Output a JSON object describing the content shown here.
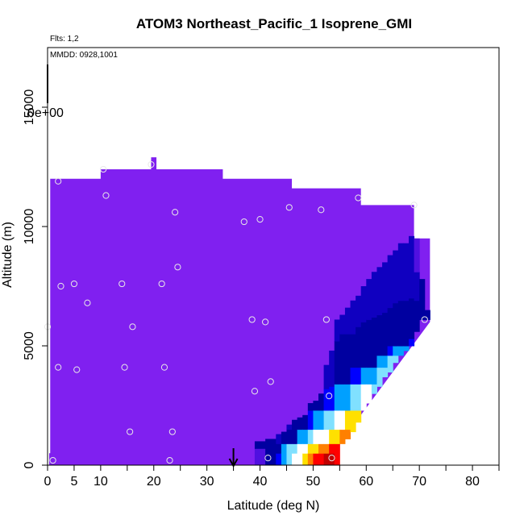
{
  "chart_data": {
    "type": "heatmap",
    "title": "ATOM3 Northeast_Pacific_1 Isoprene_GMI",
    "subtitle_flights": "Flts: 1,2",
    "subtitle_dates": "MMDD: 0928,1001",
    "xlabel": "Latitude (deg N)",
    "ylabel": "Altitude (m)",
    "xlim": [
      0,
      85
    ],
    "ylim": [
      0,
      17500
    ],
    "x_ticks": [
      0,
      5,
      10,
      20,
      30,
      40,
      50,
      60,
      70,
      80
    ],
    "x_minor_ticks": [
      15,
      25,
      35,
      45,
      55,
      65,
      75,
      85
    ],
    "y_ticks": [
      0,
      5000,
      10000,
      15000
    ],
    "colorbar_zero_label": "0e+00",
    "arrow_latitude": 35,
    "background_color": "#8020F0",
    "colormap": [
      "#8020F0",
      "#5010E0",
      "#1000C0",
      "#0000A0",
      "#0000FF",
      "#00A0FF",
      "#80E0FF",
      "#FFFFFF",
      "#FFE000",
      "#FF8000",
      "#FF0000",
      "#C00000"
    ],
    "column_tops": [
      {
        "lon": 0.5,
        "alt": 12000
      },
      {
        "lon": 10,
        "alt": 12400
      },
      {
        "lon": 19.5,
        "alt": 12900
      },
      {
        "lon": 20.5,
        "alt": 12400
      },
      {
        "lon": 33,
        "alt": 12000
      },
      {
        "lon": 46,
        "alt": 11600
      },
      {
        "lon": 59,
        "alt": 10900
      },
      {
        "lon": 69,
        "alt": 9500
      }
    ],
    "obs_points": [
      {
        "lat": 1,
        "alt": 200
      },
      {
        "lat": 2,
        "alt": 4100
      },
      {
        "lat": 2,
        "alt": 11900
      },
      {
        "lat": 2.5,
        "alt": 7500
      },
      {
        "lat": 5,
        "alt": 7600
      },
      {
        "lat": 5.5,
        "alt": 4000
      },
      {
        "lat": 7.5,
        "alt": 6800
      },
      {
        "lat": 10.5,
        "alt": 12400
      },
      {
        "lat": 11,
        "alt": 11300
      },
      {
        "lat": 14,
        "alt": 7600
      },
      {
        "lat": 14.5,
        "alt": 4100
      },
      {
        "lat": 15.5,
        "alt": 1400
      },
      {
        "lat": 16,
        "alt": 5800
      },
      {
        "lat": 19.5,
        "alt": 12600
      },
      {
        "lat": 21.5,
        "alt": 7600
      },
      {
        "lat": 22,
        "alt": 4100
      },
      {
        "lat": 23,
        "alt": 200
      },
      {
        "lat": 23.5,
        "alt": 1400
      },
      {
        "lat": 24,
        "alt": 10600
      },
      {
        "lat": 24.5,
        "alt": 8300
      },
      {
        "lat": 37,
        "alt": 10200
      },
      {
        "lat": 38.5,
        "alt": 6100
      },
      {
        "lat": 39,
        "alt": 3100
      },
      {
        "lat": 40,
        "alt": 10300
      },
      {
        "lat": 41,
        "alt": 6000
      },
      {
        "lat": 41.5,
        "alt": 300
      },
      {
        "lat": 42,
        "alt": 3500
      },
      {
        "lat": 45.5,
        "alt": 10800
      },
      {
        "lat": 51.5,
        "alt": 10700
      },
      {
        "lat": 52.5,
        "alt": 6100
      },
      {
        "lat": 53,
        "alt": 2900
      },
      {
        "lat": 53.5,
        "alt": 300
      },
      {
        "lat": 58.5,
        "alt": 11200
      },
      {
        "lat": 69,
        "alt": 10900
      },
      {
        "lat": 71,
        "alt": 6100
      },
      {
        "lat": 0,
        "alt": 5800
      }
    ],
    "plume": {
      "note": "Isoprene concentration increases toward surface near 40-55N; values encoded as colormap index (0=background purple .. 11=dark red)",
      "columns": [
        {
          "lat_min": 39,
          "lat_max": 41,
          "bands": [
            [
              0,
              700,
              1
            ],
            [
              700,
              1000,
              3
            ]
          ]
        },
        {
          "lat_min": 41,
          "lat_max": 43,
          "bands": [
            [
              0,
              700,
              3
            ],
            [
              700,
              1100,
              3
            ]
          ]
        },
        {
          "lat_min": 43,
          "lat_max": 44,
          "bands": [
            [
              0,
              500,
              4
            ],
            [
              500,
              900,
              3
            ],
            [
              900,
              1300,
              2
            ]
          ]
        },
        {
          "lat_min": 44,
          "lat_max": 45,
          "bands": [
            [
              0,
              500,
              5
            ],
            [
              500,
              900,
              5
            ],
            [
              900,
              1400,
              3
            ]
          ]
        },
        {
          "lat_min": 45,
          "lat_max": 46,
          "bands": [
            [
              0,
              500,
              6
            ],
            [
              500,
              900,
              6
            ],
            [
              900,
              1500,
              3
            ],
            [
              1500,
              1700,
              2
            ]
          ]
        },
        {
          "lat_min": 46,
          "lat_max": 47,
          "bands": [
            [
              0,
              500,
              7
            ],
            [
              500,
              900,
              6
            ],
            [
              900,
              1500,
              3
            ],
            [
              1500,
              1900,
              3
            ]
          ]
        },
        {
          "lat_min": 47,
          "lat_max": 48,
          "bands": [
            [
              0,
              500,
              7
            ],
            [
              500,
              900,
              7
            ],
            [
              900,
              1500,
              5
            ],
            [
              1500,
              2000,
              3
            ]
          ]
        },
        {
          "lat_min": 48,
          "lat_max": 49,
          "bands": [
            [
              0,
              500,
              8
            ],
            [
              500,
              900,
              7
            ],
            [
              900,
              1500,
              5
            ],
            [
              1500,
              2100,
              3
            ]
          ]
        },
        {
          "lat_min": 49,
          "lat_max": 50,
          "bands": [
            [
              0,
              500,
              9
            ],
            [
              500,
              900,
              8
            ],
            [
              900,
              1500,
              6
            ],
            [
              1500,
              2300,
              4
            ],
            [
              2300,
              2600,
              3
            ]
          ]
        },
        {
          "lat_min": 50,
          "lat_max": 51,
          "bands": [
            [
              0,
              500,
              10
            ],
            [
              500,
              900,
              8
            ],
            [
              900,
              1500,
              7
            ],
            [
              1500,
              2300,
              5
            ],
            [
              2300,
              2700,
              3
            ]
          ]
        },
        {
          "lat_min": 51,
          "lat_max": 52,
          "bands": [
            [
              0,
              500,
              10
            ],
            [
              500,
              900,
              9
            ],
            [
              900,
              1500,
              7
            ],
            [
              1500,
              2300,
              5
            ],
            [
              2300,
              3000,
              3
            ]
          ]
        },
        {
          "lat_min": 52,
          "lat_max": 53,
          "bands": [
            [
              0,
              500,
              11
            ],
            [
              500,
              900,
              9
            ],
            [
              900,
              1500,
              7
            ],
            [
              1500,
              2300,
              6
            ],
            [
              2300,
              3200,
              4
            ],
            [
              3200,
              4200,
              2
            ]
          ]
        },
        {
          "lat_min": 53,
          "lat_max": 54,
          "bands": [
            [
              0,
              500,
              11
            ],
            [
              500,
              900,
              10
            ],
            [
              900,
              1500,
              8
            ],
            [
              1500,
              2300,
              6
            ],
            [
              2300,
              3300,
              4
            ],
            [
              3300,
              4800,
              2
            ]
          ]
        },
        {
          "lat_min": 54,
          "lat_max": 55,
          "bands": [
            [
              0,
              900,
              10
            ],
            [
              900,
              1500,
              8
            ],
            [
              1500,
              2300,
              7
            ],
            [
              2300,
              3400,
              5
            ],
            [
              3400,
              5200,
              3
            ],
            [
              5200,
              6100,
              2
            ]
          ]
        },
        {
          "lat_min": 55,
          "lat_max": 56,
          "bands": [
            [
              900,
              1500,
              9
            ],
            [
              1500,
              2300,
              7
            ],
            [
              2300,
              3400,
              5
            ],
            [
              3400,
              5500,
              3
            ],
            [
              5500,
              6300,
              2
            ]
          ]
        },
        {
          "lat_min": 56,
          "lat_max": 57,
          "bands": [
            [
              1100,
              1500,
              9
            ],
            [
              1500,
              2300,
              8
            ],
            [
              2300,
              3400,
              5
            ],
            [
              3400,
              5500,
              3
            ],
            [
              5500,
              6600,
              2
            ]
          ]
        },
        {
          "lat_min": 57,
          "lat_max": 58,
          "bands": [
            [
              1400,
              2300,
              8
            ],
            [
              2300,
              3400,
              6
            ],
            [
              3400,
              4100,
              4
            ],
            [
              4100,
              5500,
              3
            ],
            [
              5500,
              6900,
              2
            ]
          ]
        },
        {
          "lat_min": 58,
          "lat_max": 59,
          "bands": [
            [
              1800,
              2300,
              8
            ],
            [
              2300,
              3400,
              6
            ],
            [
              3400,
              4100,
              4
            ],
            [
              4100,
              5800,
              3
            ],
            [
              5800,
              7100,
              2
            ]
          ]
        },
        {
          "lat_min": 59,
          "lat_max": 60,
          "bands": [
            [
              2300,
              2600,
              7
            ],
            [
              2600,
              3400,
              7
            ],
            [
              3400,
              4100,
              5
            ],
            [
              4100,
              6000,
              3
            ],
            [
              6000,
              7500,
              2
            ]
          ]
        },
        {
          "lat_min": 60,
          "lat_max": 61,
          "bands": [
            [
              2600,
              3400,
              7
            ],
            [
              3400,
              4100,
              5
            ],
            [
              4100,
              6100,
              3
            ],
            [
              6100,
              7800,
              2
            ]
          ]
        },
        {
          "lat_min": 61,
          "lat_max": 62,
          "bands": [
            [
              3000,
              3400,
              6
            ],
            [
              3400,
              4100,
              5
            ],
            [
              4100,
              6200,
              3
            ],
            [
              6200,
              8100,
              2
            ]
          ]
        },
        {
          "lat_min": 62,
          "lat_max": 63,
          "bands": [
            [
              3300,
              3500,
              6
            ],
            [
              3500,
              4100,
              6
            ],
            [
              4100,
              4600,
              5
            ],
            [
              4600,
              6300,
              3
            ],
            [
              6300,
              8300,
              2
            ]
          ]
        },
        {
          "lat_min": 63,
          "lat_max": 64,
          "bands": [
            [
              3700,
              4100,
              6
            ],
            [
              4100,
              4600,
              5
            ],
            [
              4600,
              6400,
              3
            ],
            [
              6400,
              8500,
              2
            ]
          ]
        },
        {
          "lat_min": 64,
          "lat_max": 65,
          "bands": [
            [
              3900,
              4600,
              6
            ],
            [
              4600,
              5000,
              4
            ],
            [
              5000,
              6600,
              3
            ],
            [
              6600,
              8800,
              2
            ]
          ]
        },
        {
          "lat_min": 65,
          "lat_max": 66,
          "bands": [
            [
              4300,
              4600,
              6
            ],
            [
              4600,
              5000,
              5
            ],
            [
              5000,
              6800,
              3
            ],
            [
              6800,
              9000,
              2
            ]
          ]
        },
        {
          "lat_min": 66,
          "lat_max": 67,
          "bands": [
            [
              4600,
              5000,
              5
            ],
            [
              5000,
              6900,
              3
            ],
            [
              6900,
              9300,
              2
            ]
          ]
        },
        {
          "lat_min": 67,
          "lat_max": 68,
          "bands": [
            [
              4800,
              5000,
              5
            ],
            [
              5000,
              6900,
              3
            ],
            [
              6900,
              9300,
              2
            ]
          ]
        },
        {
          "lat_min": 68,
          "lat_max": 69,
          "bands": [
            [
              5000,
              5300,
              4
            ],
            [
              5300,
              7000,
              3
            ],
            [
              7000,
              9600,
              2
            ]
          ]
        },
        {
          "lat_min": 69,
          "lat_max": 70,
          "bands": [
            [
              5600,
              6900,
              3
            ],
            [
              6900,
              8100,
              2
            ],
            [
              8100,
              9500,
              1
            ]
          ]
        },
        {
          "lat_min": 70,
          "lat_max": 71,
          "bands": [
            [
              6100,
              6900,
              3
            ],
            [
              6900,
              7800,
              3
            ]
          ]
        },
        {
          "lat_min": 71,
          "lat_max": 72,
          "bands": [
            [
              6100,
              6500,
              3
            ]
          ]
        }
      ]
    },
    "surface_strip": [
      {
        "lat_min": 0.3,
        "lat_max": 1.5,
        "alt_max": 500,
        "index": 0
      }
    ]
  }
}
